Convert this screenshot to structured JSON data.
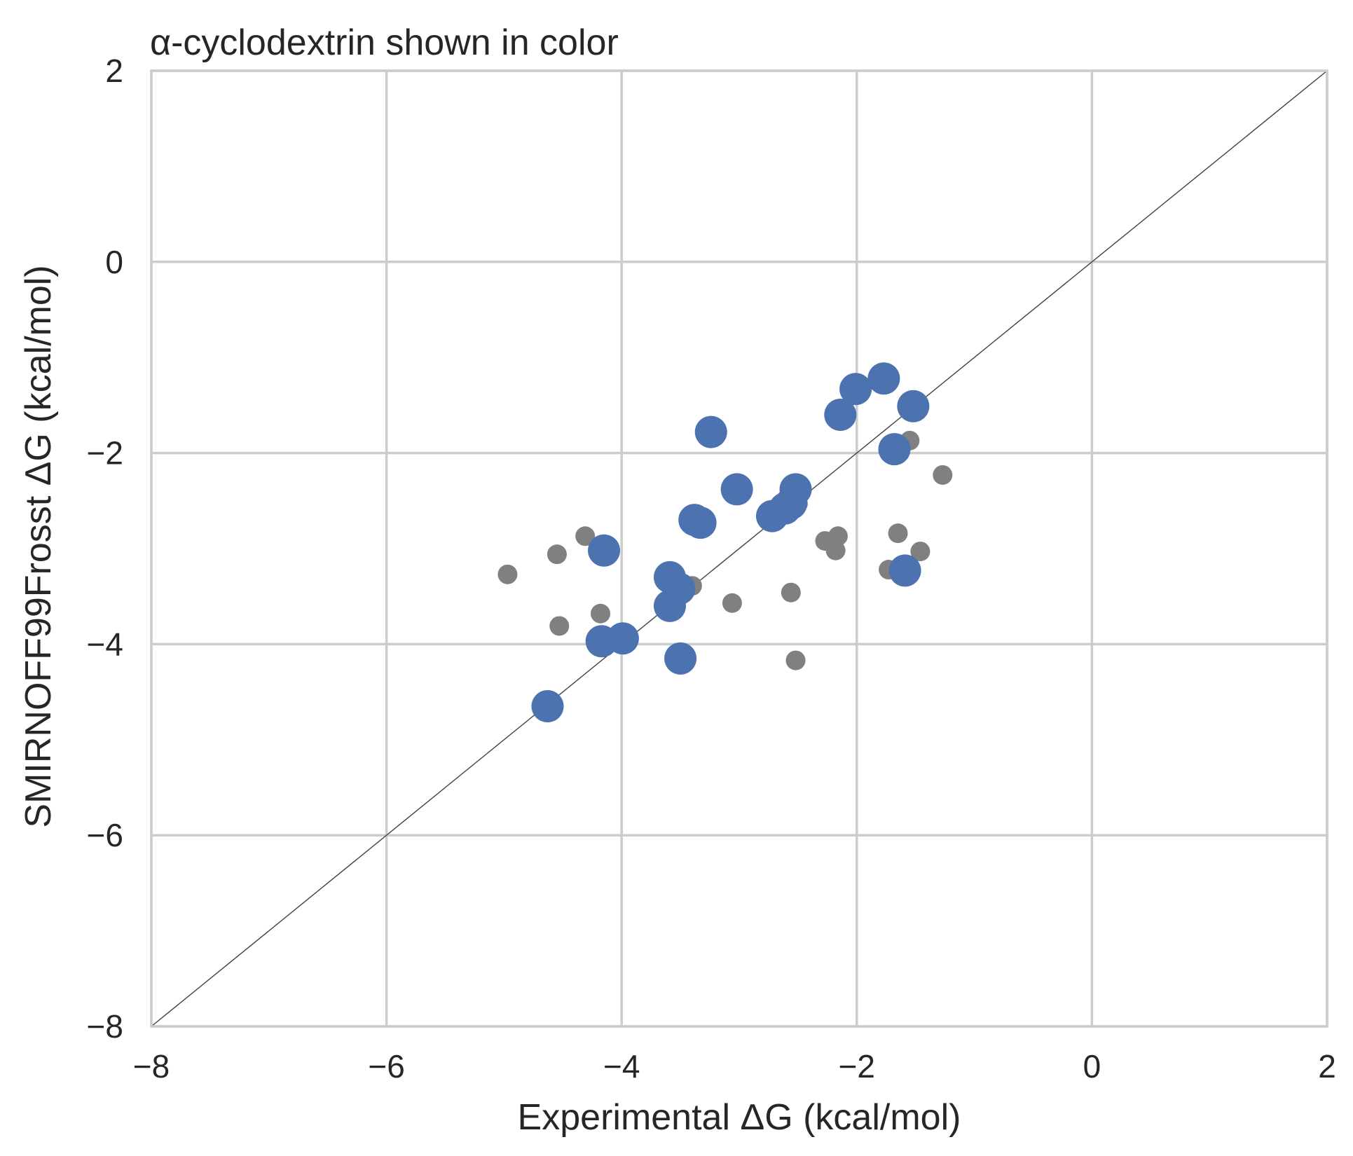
{
  "chart_data": {
    "type": "scatter",
    "title": "α-cyclodextrin shown in color",
    "xlabel": "Experimental ΔG (kcal/mol)",
    "ylabel": "SMIRNOFF99Frosst ΔG (kcal/mol)",
    "xlim": [
      -8,
      2
    ],
    "ylim": [
      -8,
      2
    ],
    "xticks": [
      -8,
      -6,
      -4,
      -2,
      0,
      2
    ],
    "yticks": [
      -8,
      -6,
      -4,
      -2,
      0,
      2
    ],
    "xtick_labels": [
      "−8",
      "−6",
      "−4",
      "−2",
      "0",
      "2"
    ],
    "ytick_labels": [
      "−8",
      "−6",
      "−4",
      "−2",
      "0",
      "2"
    ],
    "grid": true,
    "reference_line": "y = x",
    "colors": {
      "highlight": "#4c72b0",
      "other": "#808080",
      "grid": "#cccccc",
      "reference_line": "#404040"
    },
    "series": [
      {
        "role": "other",
        "points": [
          [
            -4.97,
            -3.27
          ],
          [
            -4.55,
            -3.06
          ],
          [
            -4.53,
            -3.81
          ],
          [
            -4.31,
            -2.87
          ],
          [
            -4.18,
            -3.68
          ],
          [
            -3.4,
            -3.39
          ],
          [
            -3.06,
            -3.57
          ],
          [
            -2.56,
            -3.46
          ],
          [
            -2.52,
            -4.17
          ],
          [
            -2.5,
            -2.53
          ],
          [
            -2.27,
            -2.92
          ],
          [
            -2.18,
            -3.02
          ],
          [
            -2.16,
            -2.87
          ],
          [
            -1.65,
            -2.84
          ],
          [
            -1.73,
            -3.22
          ],
          [
            -1.55,
            -1.87
          ],
          [
            -1.46,
            -3.03
          ],
          [
            -1.27,
            -2.23
          ]
        ]
      },
      {
        "role": "highlight",
        "points": [
          [
            -4.63,
            -4.65
          ],
          [
            -4.15,
            -3.02
          ],
          [
            -4.17,
            -3.97
          ],
          [
            -3.99,
            -3.94
          ],
          [
            -3.59,
            -3.3
          ],
          [
            -3.51,
            -3.42
          ],
          [
            -3.59,
            -3.6
          ],
          [
            -3.5,
            -4.15
          ],
          [
            -3.38,
            -2.7
          ],
          [
            -3.33,
            -2.73
          ],
          [
            -3.24,
            -1.78
          ],
          [
            -3.02,
            -2.38
          ],
          [
            -2.72,
            -2.66
          ],
          [
            -2.61,
            -2.58
          ],
          [
            -2.56,
            -2.53
          ],
          [
            -2.52,
            -2.38
          ],
          [
            -2.14,
            -1.6
          ],
          [
            -2.01,
            -1.33
          ],
          [
            -1.77,
            -1.22
          ],
          [
            -1.68,
            -1.96
          ],
          [
            -1.52,
            -1.51
          ],
          [
            -1.59,
            -3.23
          ]
        ]
      }
    ]
  }
}
